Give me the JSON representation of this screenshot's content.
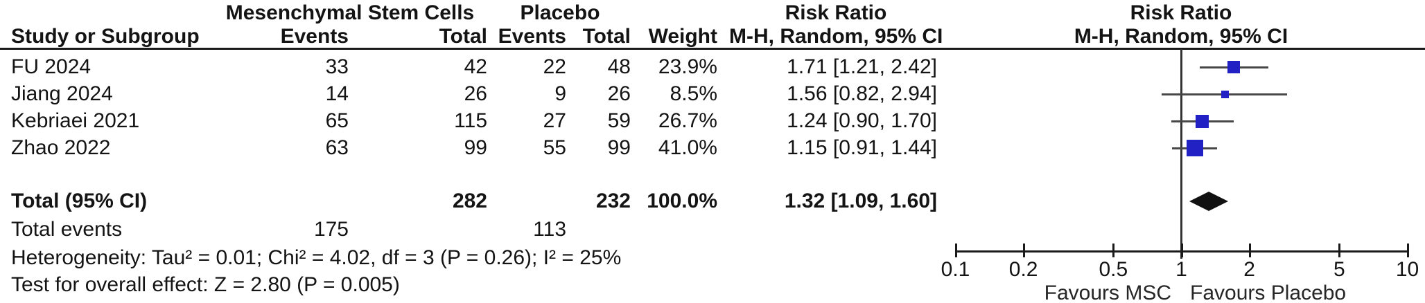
{
  "table": {
    "group_headers": {
      "msc": "Mesenchymal Stem Cells",
      "placebo": "Placebo",
      "rr_text_col": "Risk Ratio",
      "rr_plot_col": "Risk Ratio"
    },
    "columns": {
      "study": "Study or Subgroup",
      "events_msc": "Events",
      "total_msc": "Total",
      "events_placebo": "Events",
      "total_placebo": "Total",
      "weight": "Weight",
      "ci_text": "M-H, Random, 95% CI",
      "ci_plot": "M-H, Random, 95% CI"
    },
    "rows": [
      {
        "study": "FU 2024",
        "events_msc": "33",
        "total_msc": "42",
        "events_placebo": "22",
        "total_placebo": "48",
        "weight": "23.9%",
        "rr_ci": "1.71 [1.21, 2.42]"
      },
      {
        "study": "Jiang 2024",
        "events_msc": "14",
        "total_msc": "26",
        "events_placebo": "9",
        "total_placebo": "26",
        "weight": "8.5%",
        "rr_ci": "1.56 [0.82, 2.94]"
      },
      {
        "study": "Kebriaei 2021",
        "events_msc": "65",
        "total_msc": "115",
        "events_placebo": "27",
        "total_placebo": "59",
        "weight": "26.7%",
        "rr_ci": "1.24 [0.90, 1.70]"
      },
      {
        "study": "Zhao 2022",
        "events_msc": "63",
        "total_msc": "99",
        "events_placebo": "55",
        "total_placebo": "99",
        "weight": "41.0%",
        "rr_ci": "1.15 [0.91, 1.44]"
      }
    ],
    "total_row": {
      "label": "Total (95% CI)",
      "total_msc": "282",
      "total_placebo": "232",
      "weight": "100.0%",
      "rr_ci": "1.32 [1.09, 1.60]"
    },
    "total_events": {
      "label": "Total events",
      "events_msc": "175",
      "events_placebo": "113"
    },
    "heterogeneity": "Heterogeneity: Tau² = 0.01; Chi² = 4.02, df = 3 (P = 0.26); I² = 25%",
    "overall_effect": "Test for overall effect: Z = 2.80 (P = 0.005)"
  },
  "chart_data": {
    "type": "forest",
    "effect_measure": "Risk Ratio",
    "model": "M-H, Random, 95% CI",
    "scale": "log10",
    "xlim": [
      0.1,
      10
    ],
    "x_ticks": [
      0.1,
      0.2,
      0.5,
      1,
      2,
      5,
      10
    ],
    "x_tick_labels": [
      "0.1",
      "0.2",
      "0.5",
      "1",
      "2",
      "5",
      "10"
    ],
    "null_line": 1,
    "studies": [
      {
        "name": "FU 2024",
        "rr": 1.71,
        "lo": 1.21,
        "hi": 2.42,
        "weight": 23.9
      },
      {
        "name": "Jiang 2024",
        "rr": 1.56,
        "lo": 0.82,
        "hi": 2.94,
        "weight": 8.5
      },
      {
        "name": "Kebriaei 2021",
        "rr": 1.24,
        "lo": 0.9,
        "hi": 1.7,
        "weight": 26.7
      },
      {
        "name": "Zhao 2022",
        "rr": 1.15,
        "lo": 0.91,
        "hi": 1.44,
        "weight": 41.0
      }
    ],
    "total": {
      "rr": 1.32,
      "lo": 1.09,
      "hi": 1.6,
      "weight": 100.0
    },
    "favours_left": "Favours MSC",
    "favours_right": "Favours Placebo",
    "marker_color": "#2121c4",
    "diamond_color": "#111111"
  }
}
